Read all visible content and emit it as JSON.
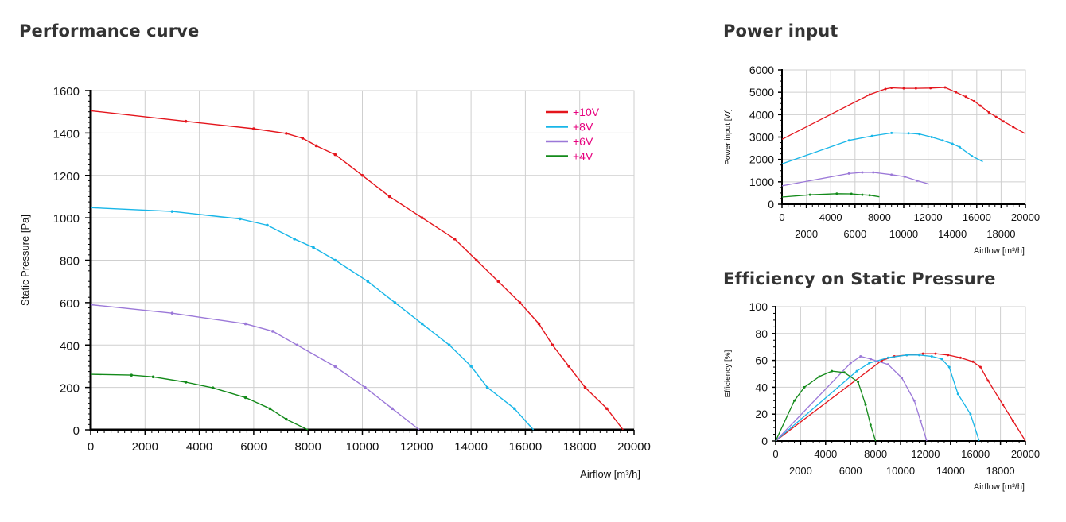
{
  "sections": {
    "performance": "Performance curve",
    "power": "Power input",
    "efficiency": "Efficiency on Static Pressure"
  },
  "colors": {
    "+10V": "#e4151c",
    "+8V": "#18b6e8",
    "+6V": "#9b78d8",
    "+4V": "#138a1a",
    "legend_text": "#e6007e",
    "grid": "#cfcfcf"
  },
  "chart_data": [
    {
      "id": "performance",
      "type": "line",
      "title": "Performance curve",
      "xlabel": "Airflow [m³/h]",
      "ylabel": "Static Pressure [Pa]",
      "xlim": [
        0,
        20000
      ],
      "ylim": [
        0,
        1600
      ],
      "xticks": [
        0,
        2000,
        4000,
        6000,
        8000,
        10000,
        12000,
        14000,
        16000,
        18000,
        20000
      ],
      "yticks": [
        0,
        200,
        400,
        600,
        800,
        1000,
        1200,
        1400,
        1600
      ],
      "grid": true,
      "legend_position": "top-right",
      "series": [
        {
          "name": "+10V",
          "color": "#e4151c",
          "points": [
            [
              0,
              1505
            ],
            [
              3500,
              1455
            ],
            [
              6000,
              1420
            ],
            [
              7200,
              1398
            ],
            [
              7800,
              1375
            ],
            [
              8300,
              1340
            ],
            [
              9000,
              1298
            ],
            [
              10000,
              1200
            ],
            [
              11000,
              1100
            ],
            [
              12200,
              1000
            ],
            [
              13400,
              900
            ],
            [
              14200,
              800
            ],
            [
              15000,
              700
            ],
            [
              15800,
              600
            ],
            [
              16500,
              500
            ],
            [
              17000,
              400
            ],
            [
              17600,
              300
            ],
            [
              18200,
              200
            ],
            [
              19000,
              100
            ],
            [
              19600,
              0
            ]
          ]
        },
        {
          "name": "+8V",
          "color": "#18b6e8",
          "points": [
            [
              0,
              1048
            ],
            [
              3000,
              1030
            ],
            [
              5500,
              995
            ],
            [
              6500,
              965
            ],
            [
              7500,
              900
            ],
            [
              8200,
              860
            ],
            [
              9000,
              800
            ],
            [
              10200,
              700
            ],
            [
              11200,
              600
            ],
            [
              12200,
              500
            ],
            [
              13200,
              400
            ],
            [
              14000,
              300
            ],
            [
              14600,
              200
            ],
            [
              15600,
              100
            ],
            [
              16300,
              0
            ]
          ]
        },
        {
          "name": "+6V",
          "color": "#9b78d8",
          "points": [
            [
              0,
              590
            ],
            [
              3000,
              550
            ],
            [
              5700,
              500
            ],
            [
              6700,
              465
            ],
            [
              7600,
              400
            ],
            [
              9000,
              298
            ],
            [
              10100,
              200
            ],
            [
              11100,
              100
            ],
            [
              12100,
              0
            ]
          ]
        },
        {
          "name": "+4V",
          "color": "#138a1a",
          "points": [
            [
              0,
              262
            ],
            [
              1500,
              258
            ],
            [
              2300,
              250
            ],
            [
              3500,
              225
            ],
            [
              4500,
              198
            ],
            [
              5700,
              152
            ],
            [
              6600,
              100
            ],
            [
              7200,
              50
            ],
            [
              8000,
              0
            ]
          ]
        }
      ]
    },
    {
      "id": "power",
      "type": "line",
      "title": "Power input",
      "xlabel": "Airflow [m³/h]",
      "ylabel": "Power input [W]",
      "xlim": [
        0,
        20000
      ],
      "ylim": [
        0,
        6000
      ],
      "xticks_upper": [
        0,
        4000,
        8000,
        12000,
        16000,
        20000
      ],
      "xticks_lower": [
        2000,
        6000,
        10000,
        14000,
        18000
      ],
      "yticks": [
        0,
        1000,
        2000,
        3000,
        4000,
        5000,
        6000
      ],
      "grid": true,
      "series": [
        {
          "name": "+10V",
          "color": "#e4151c",
          "points": [
            [
              0,
              2900
            ],
            [
              7200,
              4900
            ],
            [
              8500,
              5150
            ],
            [
              9000,
              5200
            ],
            [
              10000,
              5180
            ],
            [
              11000,
              5180
            ],
            [
              12200,
              5190
            ],
            [
              13400,
              5220
            ],
            [
              14300,
              5000
            ],
            [
              15100,
              4800
            ],
            [
              15800,
              4600
            ],
            [
              16300,
              4400
            ],
            [
              17000,
              4100
            ],
            [
              17600,
              3900
            ],
            [
              18200,
              3700
            ],
            [
              19000,
              3450
            ],
            [
              20000,
              3150
            ]
          ]
        },
        {
          "name": "+8V",
          "color": "#18b6e8",
          "points": [
            [
              0,
              1800
            ],
            [
              5500,
              2850
            ],
            [
              7400,
              3050
            ],
            [
              9000,
              3180
            ],
            [
              10400,
              3170
            ],
            [
              11300,
              3130
            ],
            [
              12300,
              3000
            ],
            [
              13200,
              2850
            ],
            [
              14000,
              2700
            ],
            [
              14600,
              2550
            ],
            [
              15600,
              2150
            ],
            [
              16500,
              1900
            ]
          ]
        },
        {
          "name": "+6V",
          "color": "#9b78d8",
          "points": [
            [
              0,
              820
            ],
            [
              5500,
              1370
            ],
            [
              6600,
              1420
            ],
            [
              7500,
              1420
            ],
            [
              9000,
              1320
            ],
            [
              10100,
              1230
            ],
            [
              11100,
              1050
            ],
            [
              12100,
              900
            ]
          ]
        },
        {
          "name": "+4V",
          "color": "#138a1a",
          "points": [
            [
              0,
              320
            ],
            [
              2300,
              420
            ],
            [
              4500,
              470
            ],
            [
              5700,
              460
            ],
            [
              6600,
              420
            ],
            [
              7200,
              400
            ],
            [
              8000,
              330
            ]
          ]
        }
      ]
    },
    {
      "id": "efficiency",
      "type": "line",
      "title": "Efficiency on Static Pressure",
      "xlabel": "Airflow [m³/h]",
      "ylabel": "Efficiency [%]",
      "xlim": [
        0,
        20000
      ],
      "ylim": [
        0,
        100
      ],
      "xticks_upper": [
        0,
        4000,
        8000,
        12000,
        16000,
        20000
      ],
      "xticks_lower": [
        2000,
        6000,
        10000,
        14000,
        18000
      ],
      "yticks": [
        0,
        20,
        40,
        60,
        80,
        100
      ],
      "grid": true,
      "series": [
        {
          "name": "+10V",
          "color": "#e4151c",
          "points": [
            [
              0,
              0
            ],
            [
              8500,
              60
            ],
            [
              9500,
              63
            ],
            [
              10500,
              64
            ],
            [
              11800,
              65
            ],
            [
              12800,
              65
            ],
            [
              13800,
              64
            ],
            [
              14800,
              62
            ],
            [
              15800,
              59
            ],
            [
              16400,
              55
            ],
            [
              17000,
              45
            ],
            [
              18200,
              27
            ],
            [
              19000,
              15
            ],
            [
              20000,
              0
            ]
          ]
        },
        {
          "name": "+8V",
          "color": "#18b6e8",
          "points": [
            [
              0,
              0
            ],
            [
              6500,
              52
            ],
            [
              7500,
              58
            ],
            [
              9000,
              62
            ],
            [
              10500,
              64
            ],
            [
              11500,
              64
            ],
            [
              12500,
              63
            ],
            [
              13300,
              61
            ],
            [
              13900,
              55
            ],
            [
              14600,
              35
            ],
            [
              15600,
              20
            ],
            [
              16300,
              0
            ]
          ]
        },
        {
          "name": "+6V",
          "color": "#9b78d8",
          "points": [
            [
              0,
              0
            ],
            [
              6000,
              58
            ],
            [
              6800,
              63
            ],
            [
              7600,
              61
            ],
            [
              9000,
              57
            ],
            [
              10100,
              47
            ],
            [
              11100,
              30
            ],
            [
              11600,
              15
            ],
            [
              12100,
              0
            ]
          ]
        },
        {
          "name": "+4V",
          "color": "#138a1a",
          "points": [
            [
              0,
              0
            ],
            [
              1500,
              30
            ],
            [
              2300,
              40
            ],
            [
              3500,
              48
            ],
            [
              4500,
              52
            ],
            [
              5500,
              51
            ],
            [
              6600,
              44
            ],
            [
              7200,
              27
            ],
            [
              7600,
              12
            ],
            [
              8000,
              0
            ]
          ]
        }
      ]
    }
  ]
}
